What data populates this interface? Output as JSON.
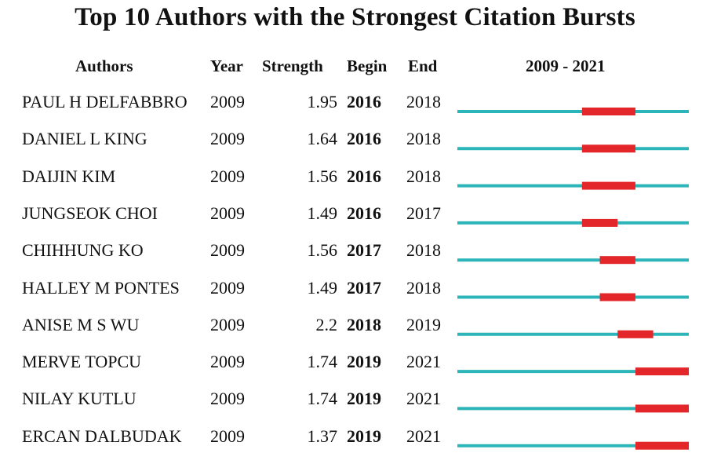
{
  "title": "Top 10 Authors with the Strongest Citation Bursts",
  "headers": {
    "authors": "Authors",
    "year": "Year",
    "strength": "Strength",
    "begin": "Begin",
    "end": "End",
    "range": "2009 - 2021"
  },
  "colors": {
    "baseline": "#2bb5b8",
    "burst": "#e3262a"
  },
  "chart_data": {
    "type": "table",
    "title": "Top 10 Authors with the Strongest Citation Bursts",
    "timeline_start": 2009,
    "timeline_end": 2021,
    "rows": [
      {
        "author": "PAUL H DELFABBRO",
        "year": "2009",
        "strength": "1.95",
        "begin": "2016",
        "end": "2018"
      },
      {
        "author": "DANIEL L KING",
        "year": "2009",
        "strength": "1.64",
        "begin": "2016",
        "end": "2018"
      },
      {
        "author": "DAIJIN KIM",
        "year": "2009",
        "strength": "1.56",
        "begin": "2016",
        "end": "2018"
      },
      {
        "author": "JUNGSEOK CHOI",
        "year": "2009",
        "strength": "1.49",
        "begin": "2016",
        "end": "2017"
      },
      {
        "author": "CHIHHUNG KO",
        "year": "2009",
        "strength": "1.56",
        "begin": "2017",
        "end": "2018"
      },
      {
        "author": "HALLEY M PONTES",
        "year": "2009",
        "strength": "1.49",
        "begin": "2017",
        "end": "2018"
      },
      {
        "author": "ANISE M S WU",
        "year": "2009",
        "strength": "2.2",
        "begin": "2018",
        "end": "2019"
      },
      {
        "author": "MERVE TOPCU",
        "year": "2009",
        "strength": "1.74",
        "begin": "2019",
        "end": "2021"
      },
      {
        "author": "NILAY KUTLU",
        "year": "2009",
        "strength": "1.74",
        "begin": "2019",
        "end": "2021"
      },
      {
        "author": "ERCAN DALBUDAK",
        "year": "2009",
        "strength": "1.37",
        "begin": "2019",
        "end": "2021"
      }
    ]
  }
}
